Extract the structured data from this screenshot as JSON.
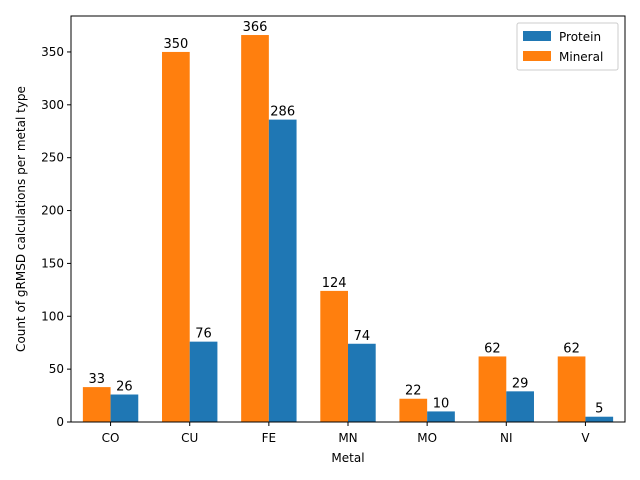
{
  "chart_data": {
    "type": "bar",
    "title": "",
    "xlabel": "Metal",
    "ylabel": "Count of gRMSD calculations per metal type",
    "categories": [
      "CO",
      "CU",
      "FE",
      "MN",
      "MO",
      "NI",
      "V"
    ],
    "ylim": [
      0,
      384
    ],
    "yticks": [
      0,
      50,
      100,
      150,
      200,
      250,
      300,
      350
    ],
    "grid": false,
    "legend_position": "top-right",
    "series": [
      {
        "name": "Protein",
        "color": "#1f77b4",
        "values": [
          26,
          76,
          286,
          74,
          10,
          29,
          5
        ]
      },
      {
        "name": "Mineral",
        "color": "#ff7f0e",
        "values": [
          33,
          350,
          366,
          124,
          22,
          62,
          62
        ]
      }
    ]
  }
}
